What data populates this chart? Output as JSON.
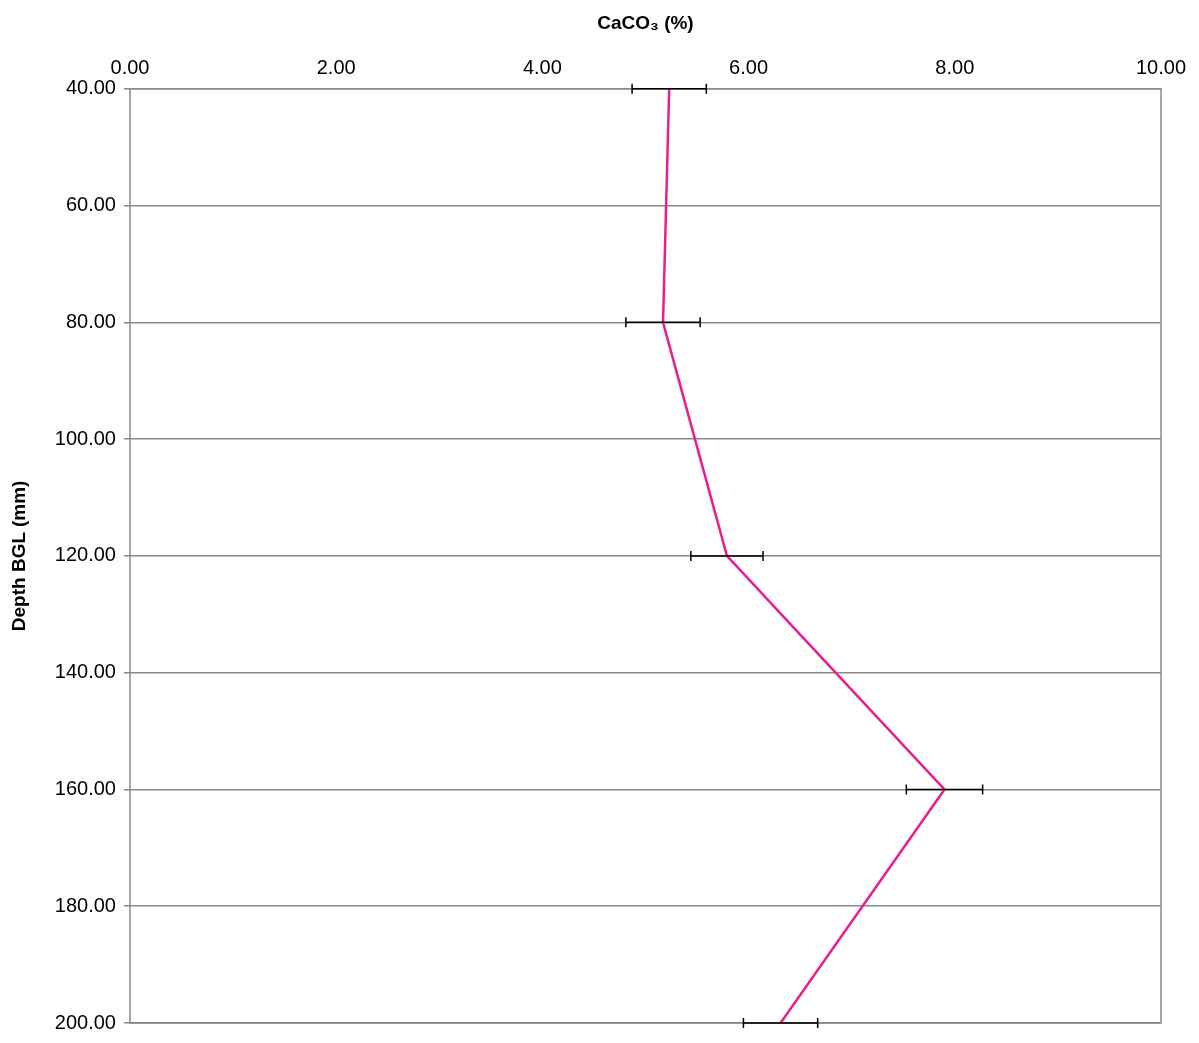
{
  "chart_data": {
    "type": "line",
    "xlabel": "CaCO₃ (%)",
    "ylabel": "Depth BGL (mm)",
    "x": [
      5.23,
      5.17,
      5.79,
      7.9,
      6.31
    ],
    "values": [
      40,
      80,
      120,
      160,
      200
    ],
    "xerrors": [
      0.36,
      0.36,
      0.35,
      0.37,
      0.36
    ],
    "color": "#e91e8c",
    "xlim": [
      0,
      10
    ],
    "xticks": [
      {
        "value": 0,
        "label": "0.00"
      },
      {
        "value": 2,
        "label": "2.00"
      },
      {
        "value": 4,
        "label": "4.00"
      },
      {
        "value": 6,
        "label": "6.00"
      },
      {
        "value": 8,
        "label": "8.00"
      },
      {
        "value": 10,
        "label": "10.00"
      }
    ],
    "ylim": [
      200,
      40
    ],
    "yticks": [
      {
        "value": 40,
        "label": "40.00"
      },
      {
        "value": 60,
        "label": "60.00"
      },
      {
        "value": 80,
        "label": "80.00"
      },
      {
        "value": 100,
        "label": "100.00"
      },
      {
        "value": 120,
        "label": "120.00"
      },
      {
        "value": 140,
        "label": "140.00"
      },
      {
        "value": 160,
        "label": "160.00"
      },
      {
        "value": 180,
        "label": "180.00"
      },
      {
        "value": 200,
        "label": "200.00"
      }
    ],
    "grid": "y",
    "marker": "none"
  }
}
